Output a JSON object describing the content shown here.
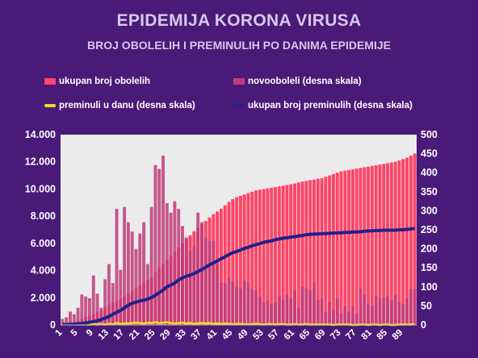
{
  "title": "EPIDEMIJA KORONA VIRUSA",
  "subtitle": "BROJ OBOLELIH I PREMINULIH PO DANIMA EPIDEMIJE",
  "colors": {
    "background": "#4a1a78",
    "plot_area": "#ebebeb",
    "ukupan_obolelih": "#ff4466",
    "novooboleli": "#c03c7a",
    "preminuli_u_danu": "#f2e01a",
    "ukupan_preminulih": "#22218a"
  },
  "chart_data": {
    "type": "bar",
    "x_start": 1,
    "x_end": 92,
    "x_ticks": [
      "1",
      "5",
      "9",
      "13",
      "17",
      "21",
      "25",
      "29",
      "33",
      "37",
      "41",
      "45",
      "49",
      "53",
      "57",
      "61",
      "65",
      "69",
      "73",
      "77",
      "81",
      "85",
      "89"
    ],
    "y_left": {
      "ylim": [
        0,
        14000
      ],
      "ticks": [
        "0",
        "2.000",
        "4.000",
        "6.000",
        "8.000",
        "10.000",
        "12.000",
        "14.000"
      ]
    },
    "y_right": {
      "ylim": [
        0,
        500
      ],
      "ticks": [
        "0",
        "50",
        "100",
        "150",
        "200",
        "250",
        "300",
        "350",
        "400",
        "450",
        "500"
      ]
    },
    "grid": false,
    "legend_position": "top",
    "series": [
      {
        "name": "ukupan broj obolelih",
        "axis": "left",
        "type": "bar",
        "values": [
          35,
          70,
          130,
          210,
          300,
          450,
          600,
          700,
          800,
          950,
          1100,
          1300,
          1500,
          1650,
          1800,
          1950,
          2100,
          2300,
          2500,
          2700,
          2900,
          3100,
          3300,
          3500,
          3900,
          4200,
          4500,
          4800,
          5100,
          5400,
          5700,
          6000,
          6300,
          6600,
          6900,
          7150,
          7400,
          7650,
          7900,
          8150,
          8350,
          8550,
          8800,
          9050,
          9250,
          9400,
          9500,
          9600,
          9700,
          9800,
          9900,
          9950,
          10000,
          10050,
          10100,
          10150,
          10200,
          10250,
          10300,
          10350,
          10400,
          10480,
          10550,
          10600,
          10650,
          10700,
          10750,
          10800,
          10900,
          11000,
          11100,
          11200,
          11300,
          11350,
          11400,
          11450,
          11500,
          11550,
          11600,
          11650,
          11700,
          11750,
          11800,
          11850,
          11900,
          11950,
          12000,
          12100,
          12200,
          12300,
          12450,
          12600
        ]
      },
      {
        "name": "novooboleli (desna skala)",
        "axis": "right",
        "type": "bar",
        "values": [
          16,
          20,
          35,
          28,
          45,
          80,
          75,
          70,
          130,
          82,
          45,
          120,
          160,
          110,
          305,
          145,
          310,
          270,
          245,
          200,
          240,
          270,
          160,
          310,
          420,
          410,
          445,
          320,
          295,
          325,
          305,
          260,
          230,
          195,
          210,
          295,
          270,
          230,
          220,
          220,
          160,
          110,
          110,
          125,
          115,
          100,
          95,
          115,
          110,
          95,
          90,
          75,
          60,
          65,
          55,
          60,
          75,
          65,
          80,
          70,
          90,
          45,
          100,
          95,
          90,
          110,
          65,
          70,
          35,
          60,
          40,
          70,
          30,
          50,
          35,
          50,
          30,
          95,
          80,
          55,
          50,
          75,
          70,
          70,
          75,
          65,
          80,
          60,
          55,
          70,
          95,
          95
        ]
      },
      {
        "name": "preminuli u danu (desna skala)",
        "axis": "right",
        "type": "line",
        "values": [
          0,
          0,
          0,
          1,
          1,
          1,
          1,
          1,
          2,
          1,
          2,
          1,
          3,
          2,
          5,
          3,
          4,
          4,
          5,
          6,
          5,
          4,
          6,
          5,
          7,
          5,
          6,
          7,
          5,
          4,
          5,
          6,
          4,
          5,
          3,
          4,
          5,
          4,
          5,
          3,
          4,
          3,
          4,
          3,
          2,
          3,
          3,
          2,
          2,
          2,
          3,
          2,
          1,
          2,
          2,
          1,
          2,
          2,
          1,
          1,
          2,
          1,
          1,
          2,
          1,
          1,
          1,
          1,
          1,
          1,
          0,
          1,
          1,
          1,
          1,
          0,
          0,
          1,
          1,
          0,
          1,
          1,
          0,
          1,
          1,
          0,
          0,
          1,
          1,
          1,
          1,
          2
        ]
      },
      {
        "name": "ukupan broj preminulih (desna skala)",
        "axis": "right",
        "type": "line",
        "values": [
          1,
          1,
          2,
          2,
          3,
          4,
          5,
          7,
          9,
          11,
          14,
          18,
          22,
          28,
          33,
          38,
          45,
          52,
          57,
          60,
          63,
          65,
          68,
          72,
          78,
          85,
          92,
          100,
          105,
          110,
          118,
          124,
          128,
          131,
          135,
          140,
          146,
          152,
          158,
          163,
          168,
          174,
          179,
          185,
          190,
          193,
          197,
          201,
          204,
          208,
          211,
          214,
          217,
          219,
          221,
          224,
          226,
          228,
          229,
          231,
          232,
          234,
          235,
          237,
          238,
          239,
          239,
          240,
          240,
          241,
          241,
          242,
          242,
          243,
          243,
          244,
          244,
          245,
          246,
          247,
          247,
          248,
          248,
          249,
          249,
          249,
          249,
          250,
          250,
          251,
          252,
          254
        ]
      }
    ]
  }
}
